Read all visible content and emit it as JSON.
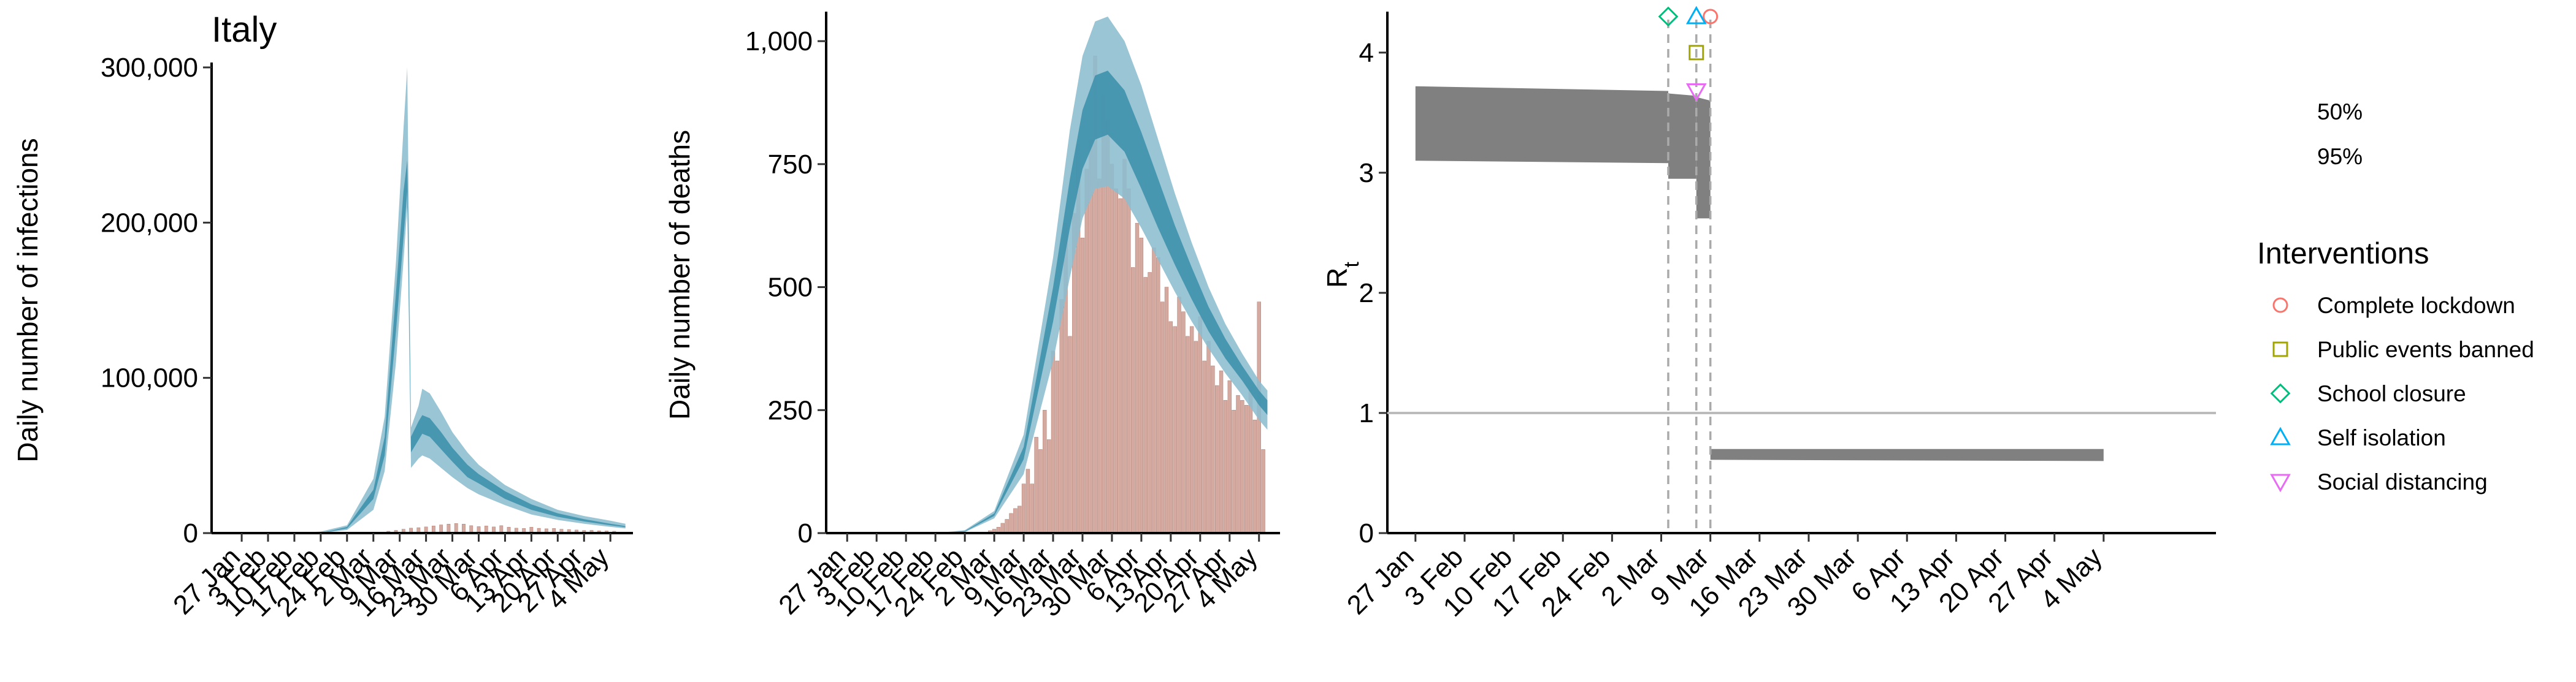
{
  "chart_data": [
    {
      "type": "area",
      "title": "Italy",
      "ylabel": "Daily number of infections",
      "xlabel": "",
      "ylim": [
        0,
        300000
      ],
      "yticks": [
        0,
        100000,
        200000,
        300000
      ],
      "ytick_labels": [
        "0",
        "100,000",
        "200,000",
        "300,000"
      ],
      "x_tick_labels": [
        "27 Jan",
        "3 Feb",
        "10 Feb",
        "17 Feb",
        "24 Feb",
        "2 Mar",
        "9 Mar",
        "16 Mar",
        "23 Mar",
        "30 Mar",
        "6 Apr",
        "13 Apr",
        "20 Apr",
        "27 Apr",
        "4 May"
      ],
      "x_tick_days": [
        0,
        7,
        14,
        21,
        28,
        35,
        42,
        49,
        56,
        63,
        70,
        77,
        84,
        91,
        98
      ],
      "band_colors": {
        "ci95": "#8cbdcf",
        "ci50": "#3a8eaa"
      },
      "bar_color": "#d4aaa0",
      "bands": {
        "x": [
          -8,
          0,
          7,
          14,
          21,
          28,
          35,
          38,
          41,
          43,
          44,
          45,
          47,
          48,
          50,
          53,
          56,
          60,
          63,
          70,
          77,
          84,
          91,
          98,
          102
        ],
        "ci95_low": [
          0,
          0,
          0,
          0,
          0,
          2000,
          15000,
          40000,
          110000,
          175000,
          210000,
          42000,
          48000,
          50000,
          48000,
          42000,
          36000,
          29000,
          25000,
          18000,
          12000,
          8500,
          6000,
          4000,
          3000
        ],
        "ci95_high": [
          0,
          0,
          0,
          0,
          1000,
          5000,
          35000,
          75000,
          175000,
          260000,
          300000,
          68000,
          82000,
          93000,
          90000,
          78000,
          65000,
          52000,
          44000,
          31000,
          22000,
          15000,
          11000,
          8000,
          6000
        ],
        "ci50_low": [
          0,
          0,
          0,
          0,
          0,
          3000,
          22000,
          50000,
          130000,
          190000,
          220000,
          52000,
          60000,
          64000,
          62000,
          54000,
          46000,
          36000,
          32000,
          22000,
          15000,
          10500,
          7500,
          5000,
          3800
        ],
        "ci50_high": [
          0,
          0,
          0,
          0,
          0,
          4000,
          28000,
          62000,
          155000,
          220000,
          240000,
          62000,
          72000,
          76000,
          74000,
          65000,
          55000,
          44000,
          38000,
          27000,
          18500,
          12800,
          9000,
          6000,
          4500
        ]
      },
      "observed": {
        "x": [
          35,
          37,
          39,
          41,
          43,
          45,
          47,
          49,
          51,
          53,
          55,
          57,
          59,
          61,
          63,
          65,
          67,
          69,
          71,
          73,
          75,
          77,
          79,
          81,
          83,
          85,
          87,
          89,
          91,
          93,
          95,
          97,
          99
        ],
        "values": [
          300,
          600,
          1200,
          1800,
          2500,
          3200,
          3500,
          4000,
          4600,
          5300,
          5800,
          6200,
          5800,
          4800,
          4200,
          4600,
          4000,
          4800,
          3800,
          3200,
          3000,
          3800,
          3100,
          2800,
          3000,
          2500,
          2300,
          2000,
          1700,
          1800,
          1500,
          1400,
          1200
        ]
      }
    },
    {
      "type": "area",
      "title": "",
      "ylabel": "Daily number of deaths",
      "xlabel": "",
      "ylim": [
        0,
        1050
      ],
      "yticks": [
        0,
        250,
        500,
        750,
        1000
      ],
      "ytick_labels": [
        "0",
        "250",
        "500",
        "750",
        "1,000"
      ],
      "x_tick_labels": [
        "27 Jan",
        "3 Feb",
        "10 Feb",
        "17 Feb",
        "24 Feb",
        "2 Mar",
        "9 Mar",
        "16 Mar",
        "23 Mar",
        "30 Mar",
        "6 Apr",
        "13 Apr",
        "20 Apr",
        "27 Apr",
        "4 May"
      ],
      "x_tick_days": [
        0,
        7,
        14,
        21,
        28,
        35,
        42,
        49,
        56,
        63,
        70,
        77,
        84,
        91,
        98
      ],
      "bands": {
        "x": [
          -2,
          0,
          7,
          14,
          21,
          28,
          35,
          42,
          49,
          53,
          56,
          59,
          62,
          66,
          70,
          74,
          78,
          82,
          86,
          90,
          94,
          98,
          100
        ],
        "ci95_low": [
          0,
          0,
          0,
          0,
          0,
          2,
          30,
          120,
          350,
          520,
          640,
          700,
          705,
          680,
          620,
          555,
          490,
          430,
          375,
          325,
          280,
          230,
          210
        ],
        "ci95_high": [
          0,
          0,
          0,
          0,
          0,
          6,
          45,
          200,
          560,
          820,
          970,
          1040,
          1050,
          1000,
          910,
          800,
          690,
          590,
          500,
          425,
          365,
          310,
          290
        ],
        "ci50_low": [
          0,
          0,
          0,
          0,
          0,
          3,
          35,
          150,
          430,
          620,
          740,
          800,
          810,
          775,
          700,
          620,
          545,
          475,
          410,
          355,
          310,
          260,
          240
        ],
        "ci50_high": [
          0,
          0,
          0,
          0,
          0,
          4,
          40,
          175,
          500,
          720,
          860,
          930,
          940,
          900,
          815,
          720,
          625,
          540,
          460,
          395,
          340,
          290,
          270
        ]
      },
      "observed": {
        "x": [
          34,
          35,
          36,
          37,
          38,
          39,
          40,
          41,
          42,
          43,
          44,
          45,
          46,
          47,
          48,
          49,
          50,
          51,
          52,
          53,
          54,
          55,
          56,
          57,
          58,
          59,
          60,
          61,
          62,
          63,
          64,
          65,
          66,
          67,
          68,
          69,
          70,
          71,
          72,
          73,
          74,
          75,
          76,
          77,
          78,
          79,
          80,
          81,
          82,
          83,
          84,
          85,
          86,
          87,
          88,
          89,
          90,
          91,
          92,
          93,
          94,
          95,
          96,
          97,
          98,
          99
        ],
        "values": [
          5,
          8,
          12,
          20,
          28,
          40,
          50,
          55,
          100,
          130,
          100,
          195,
          170,
          250,
          190,
          370,
          350,
          475,
          630,
          400,
          650,
          790,
          600,
          740,
          800,
          970,
          720,
          890,
          840,
          750,
          700,
          680,
          760,
          700,
          540,
          630,
          600,
          520,
          530,
          580,
          560,
          470,
          500,
          430,
          420,
          480,
          450,
          400,
          420,
          390,
          440,
          350,
          390,
          340,
          300,
          330,
          270,
          310,
          250,
          280,
          270,
          260,
          290,
          230,
          470,
          170
        ]
      }
    },
    {
      "type": "area",
      "title": "",
      "ylabel": "R",
      "ylabel_subscript": "t",
      "xlabel": "",
      "ylim": [
        0,
        4.3
      ],
      "yticks": [
        0,
        1,
        2,
        3,
        4
      ],
      "ytick_labels": [
        "0",
        "1",
        "2",
        "3",
        "4"
      ],
      "x_tick_labels": [
        "27 Jan",
        "3 Feb",
        "10 Feb",
        "17 Feb",
        "24 Feb",
        "2 Mar",
        "9 Mar",
        "16 Mar",
        "23 Mar",
        "30 Mar",
        "6 Apr",
        "13 Apr",
        "20 Apr",
        "27 Apr",
        "4 May"
      ],
      "x_tick_days": [
        0,
        7,
        14,
        21,
        28,
        35,
        42,
        49,
        56,
        63,
        70,
        77,
        84,
        91,
        98
      ],
      "band_color": "#808080",
      "reference_line": 1,
      "segments": [
        {
          "x": [
            0,
            36
          ],
          "low": [
            3.1,
            3.08
          ],
          "high": [
            3.72,
            3.68
          ]
        },
        {
          "x": [
            36,
            40
          ],
          "low": [
            2.95,
            2.95
          ],
          "high": [
            3.66,
            3.64
          ]
        },
        {
          "x": [
            40,
            42
          ],
          "low": [
            2.62,
            2.62
          ],
          "high": [
            3.63,
            3.6
          ]
        },
        {
          "x": [
            42,
            98
          ],
          "low": [
            0.61,
            0.6
          ],
          "high": [
            0.7,
            0.7
          ]
        }
      ],
      "interventions": [
        {
          "name": "Complete lockdown",
          "day": 42,
          "y": 4.3,
          "color": "#f8766d",
          "shape": "circle"
        },
        {
          "name": "Public events banned",
          "day": 40,
          "y": 4.0,
          "color": "#a3a500",
          "shape": "square"
        },
        {
          "name": "School closure",
          "day": 36,
          "y": 4.3,
          "color": "#00bf7d",
          "shape": "diamond"
        },
        {
          "name": "Self isolation",
          "day": 40,
          "y": 4.3,
          "color": "#00b0f6",
          "shape": "triangle-up"
        },
        {
          "name": "Social distancing",
          "day": 40,
          "y": 3.68,
          "color": "#e76bf3",
          "shape": "triangle-down"
        }
      ],
      "intervention_lines": [
        36,
        40,
        42
      ],
      "legend": {
        "ci_labels": [
          "50%",
          "95%"
        ],
        "title": "Interventions",
        "items": [
          "Complete lockdown",
          "Public events banned",
          "School closure",
          "Self isolation",
          "Social distancing"
        ]
      }
    }
  ]
}
